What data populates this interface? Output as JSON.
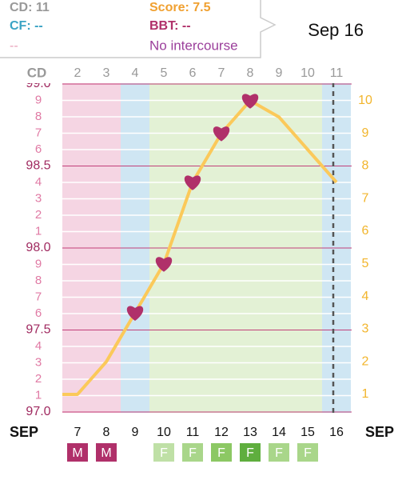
{
  "tooltip": {
    "cd": "CD: 11",
    "score": "Score: 7.5",
    "cf": "CF: --",
    "bbt": "BBT: --",
    "mucus": "--",
    "intercourse": "No intercourse"
  },
  "selected_date": "Sep 16",
  "chart_data": {
    "type": "line",
    "cd_label": "CD",
    "cd": [
      null,
      "2",
      "3",
      "4",
      "5",
      "6",
      "7",
      "8",
      "9",
      "10",
      "11"
    ],
    "month": "SEP",
    "categories": [
      null,
      "7",
      "8",
      "9",
      "10",
      "11",
      "12",
      "13",
      "14",
      "15",
      "16"
    ],
    "column_colors": [
      "#f5d5e3",
      "#f5d5e3",
      "#f5d5e3",
      "#cfe6f3",
      "#e3f1d5",
      "#e3f1d5",
      "#e3f1d5",
      "#e3f1d5",
      "#e3f1d5",
      "#e3f1d5",
      "#cfe6f3"
    ],
    "ylim": [
      97.0,
      99.0
    ],
    "yticks": [
      {
        "value": 97.0,
        "label": "97.0"
      },
      {
        "value": 97.1,
        "label": "1"
      },
      {
        "value": 97.2,
        "label": "2"
      },
      {
        "value": 97.3,
        "label": "3"
      },
      {
        "value": 97.4,
        "label": "4"
      },
      97.5,
      {
        "value": 97.6,
        "label": "6"
      },
      {
        "value": 97.7,
        "label": "7"
      },
      {
        "value": 97.8,
        "label": "8"
      },
      {
        "value": 97.9,
        "label": "9"
      },
      {
        "value": 98.0,
        "label": "98.0"
      },
      {
        "value": 98.1,
        "label": "1"
      },
      {
        "value": 98.2,
        "label": "2"
      },
      {
        "value": 98.3,
        "label": "3"
      },
      {
        "value": 98.4,
        "label": "4"
      },
      98.5,
      {
        "value": 98.6,
        "label": "6"
      },
      {
        "value": 98.7,
        "label": "7"
      },
      {
        "value": 98.8,
        "label": "8"
      },
      {
        "value": 98.9,
        "label": "9"
      },
      {
        "value": 99.0,
        "label": "99.0"
      }
    ],
    "y2lim": [
      0.46,
      10.51
    ],
    "y2ticks": [
      1,
      2,
      3,
      4,
      5,
      6,
      7,
      8,
      9,
      10
    ],
    "series": [
      {
        "color": "#fbc95a",
        "axis": "y2",
        "values": [
          1,
          1,
          2,
          3.5,
          5,
          7.5,
          9,
          10,
          9.5,
          8.5,
          7.5
        ]
      }
    ],
    "intercourse": [
      false,
      false,
      false,
      true,
      true,
      true,
      true,
      true,
      false,
      false,
      false
    ],
    "heart_color": "#b0306a",
    "markers": [
      null,
      "M",
      "M",
      null,
      "F",
      "F",
      "F",
      "F",
      "F",
      "F",
      null
    ],
    "marker_colors": [
      null,
      "#b0306a",
      "#b0306a",
      null,
      "#bfe0a6",
      "#a9d68a",
      "#8cc864",
      "#5fae3e",
      "#a9d68a",
      "#a9d68a",
      null
    ],
    "today_index": 10
  }
}
